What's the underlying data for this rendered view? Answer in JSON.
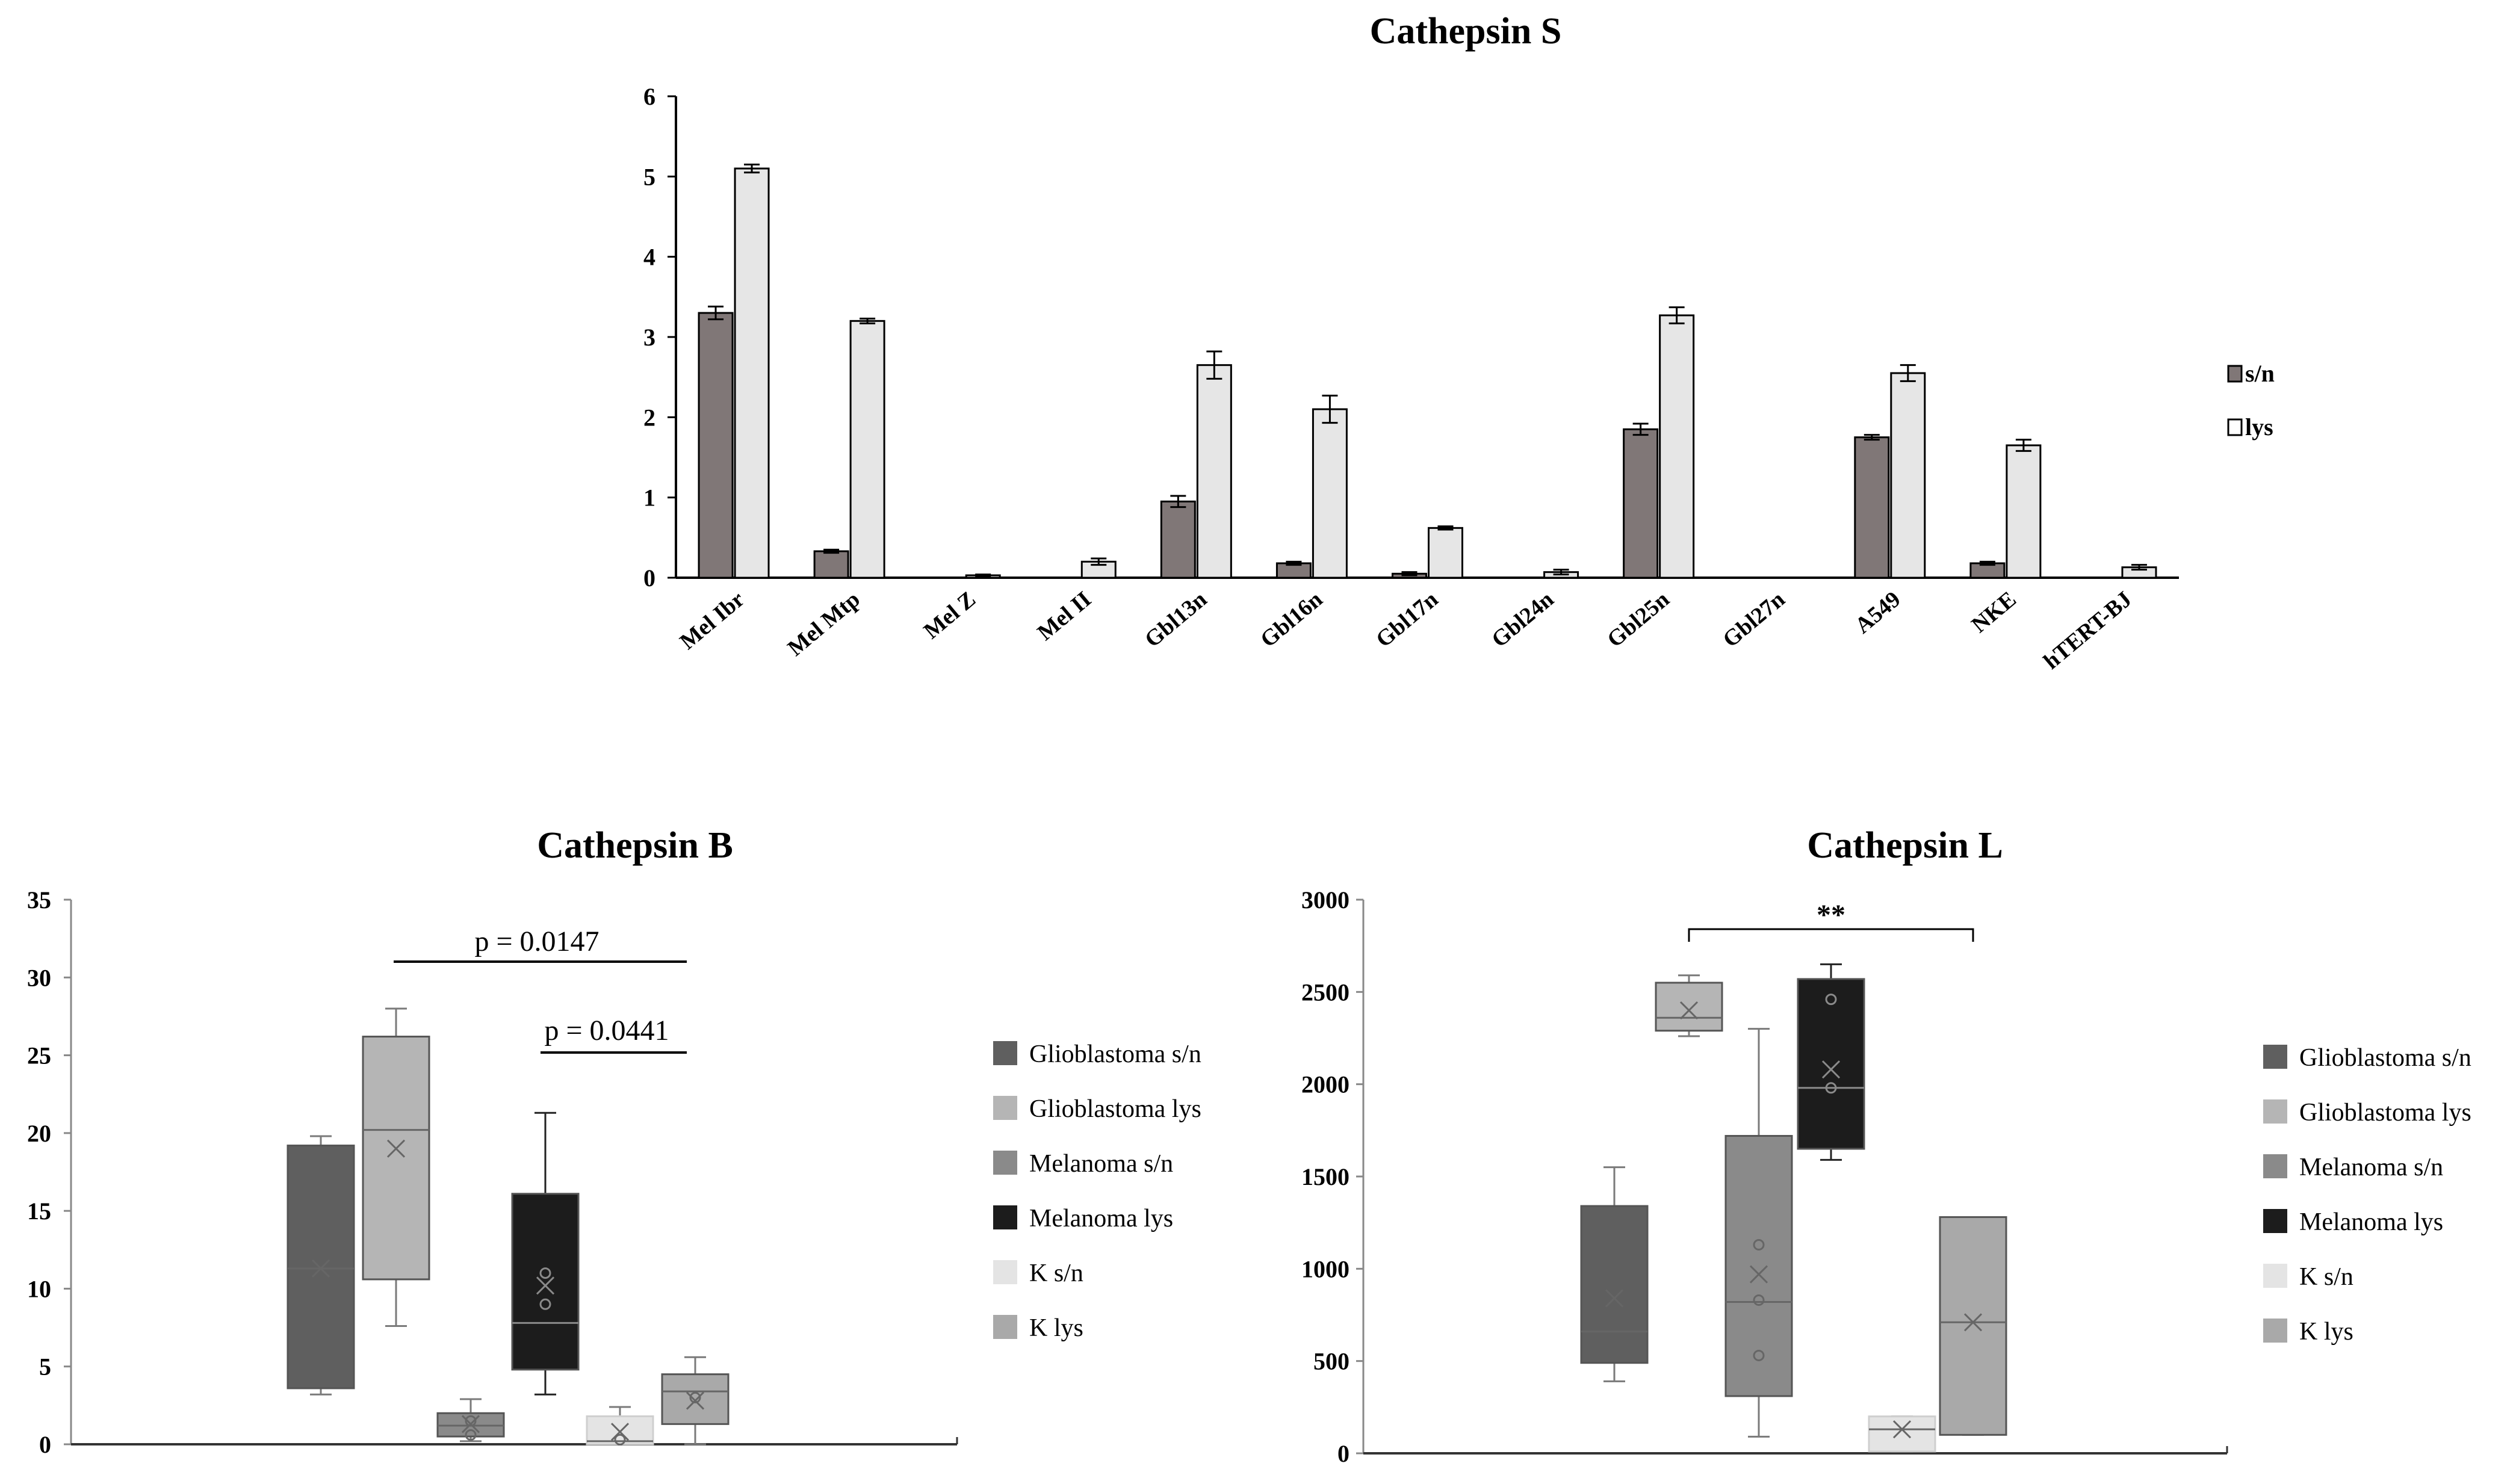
{
  "chart_data": [
    {
      "type": "bar",
      "title": "Cathepsin S",
      "xlabel": "",
      "ylabel": "",
      "ylim": [
        0,
        6
      ],
      "yticks": [
        "0",
        "1",
        "2",
        "3",
        "4",
        "5",
        "6"
      ],
      "categories": [
        "Mel Ibr",
        "Mel Mtp",
        "Mel Z",
        "Mel II",
        "Gbl13n",
        "Gbl16n",
        "Gbl17n",
        "Gbl24n",
        "Gbl25n",
        "Gbl27n",
        "A549",
        "NKE",
        "hTERT-BJ"
      ],
      "series": [
        {
          "name": "s/n",
          "color": "#807777",
          "values": [
            3.3,
            0.33,
            0,
            0,
            0.95,
            0.18,
            0.05,
            0,
            1.85,
            0,
            1.75,
            0.18,
            0
          ],
          "errors": [
            0.08,
            0.02,
            0,
            0,
            0.07,
            0.02,
            0.02,
            0,
            0.07,
            0,
            0.03,
            0.02,
            0
          ]
        },
        {
          "name": "lys",
          "color": "#e6e6e6",
          "values": [
            5.1,
            3.2,
            0.03,
            0.2,
            2.65,
            2.1,
            0.62,
            0.07,
            3.27,
            0,
            2.55,
            1.65,
            0.13
          ],
          "errors": [
            0.05,
            0.03,
            0.01,
            0.04,
            0.17,
            0.17,
            0.02,
            0.03,
            0.1,
            0,
            0.1,
            0.07,
            0.03
          ]
        }
      ],
      "legend": "right"
    },
    {
      "type": "box",
      "title": "Cathepsin B",
      "ylim": [
        0,
        35
      ],
      "yticks": [
        "0",
        "5",
        "10",
        "15",
        "20",
        "25",
        "30",
        "35"
      ],
      "series": [
        {
          "name": "Glioblastoma s/n",
          "color": "#5f5f5f",
          "min": 3.2,
          "q1": 3.6,
          "median": 11.3,
          "q3": 19.2,
          "max": 19.8,
          "mean": 11.3,
          "points": []
        },
        {
          "name": "Glioblastoma lys",
          "color": "#b5b5b5",
          "min": 7.6,
          "q1": 10.6,
          "median": 20.2,
          "q3": 26.2,
          "max": 28.0,
          "mean": 19.0,
          "points": []
        },
        {
          "name": "Melanoma s/n",
          "color": "#8a8a8a",
          "min": 0.2,
          "q1": 0.5,
          "median": 1.2,
          "q3": 2.0,
          "max": 2.9,
          "mean": 1.3,
          "points": [
            0.6,
            1.5
          ]
        },
        {
          "name": "Melanoma lys",
          "color": "#1c1c1c",
          "min": 3.2,
          "q1": 4.8,
          "median": 7.8,
          "q3": 16.1,
          "max": 21.3,
          "mean": 10.2,
          "points": [
            9.0,
            11.0
          ]
        },
        {
          "name": "K s/n",
          "color": "#e4e4e4",
          "min": 0.0,
          "q1": 0.0,
          "median": 0.2,
          "q3": 1.8,
          "max": 2.4,
          "mean": 0.8,
          "points": [
            0.3
          ]
        },
        {
          "name": "K lys",
          "color": "#a9a9a9",
          "min": 0.0,
          "q1": 1.3,
          "median": 3.4,
          "q3": 4.5,
          "max": 5.6,
          "mean": 2.8,
          "points": [
            3.0
          ]
        }
      ],
      "annotations": [
        "p = 0.0147",
        "p = 0.0441"
      ],
      "legend": "right"
    },
    {
      "type": "box",
      "title": "Cathepsin L",
      "ylim": [
        0,
        3000
      ],
      "yticks": [
        "0",
        "500",
        "1000",
        "1500",
        "2000",
        "2500",
        "3000"
      ],
      "series": [
        {
          "name": "Glioblastoma s/n",
          "color": "#5f5f5f",
          "min": 390,
          "q1": 490,
          "median": 660,
          "q3": 1340,
          "max": 1550,
          "mean": 840,
          "points": []
        },
        {
          "name": "Glioblastoma lys",
          "color": "#b5b5b5",
          "min": 2260,
          "q1": 2290,
          "median": 2360,
          "q3": 2550,
          "max": 2590,
          "mean": 2400,
          "points": []
        },
        {
          "name": "Melanoma s/n",
          "color": "#8a8a8a",
          "min": 90,
          "q1": 310,
          "median": 820,
          "q3": 1720,
          "max": 2300,
          "mean": 970,
          "points": [
            530,
            830,
            1130
          ]
        },
        {
          "name": "Melanoma lys",
          "color": "#1c1c1c",
          "min": 1590,
          "q1": 1650,
          "median": 1980,
          "q3": 2570,
          "max": 2650,
          "mean": 2080,
          "points": [
            1980,
            2460
          ]
        },
        {
          "name": "K s/n",
          "color": "#e4e4e4",
          "min": 10,
          "q1": 10,
          "median": 130,
          "q3": 200,
          "max": 200,
          "mean": 130,
          "points": []
        },
        {
          "name": "K lys",
          "color": "#a9a9a9",
          "min": 100,
          "q1": 100,
          "median": 710,
          "q3": 1280,
          "max": 1280,
          "mean": 710,
          "points": []
        }
      ],
      "annotations": [
        "**"
      ],
      "legend": "right"
    }
  ]
}
